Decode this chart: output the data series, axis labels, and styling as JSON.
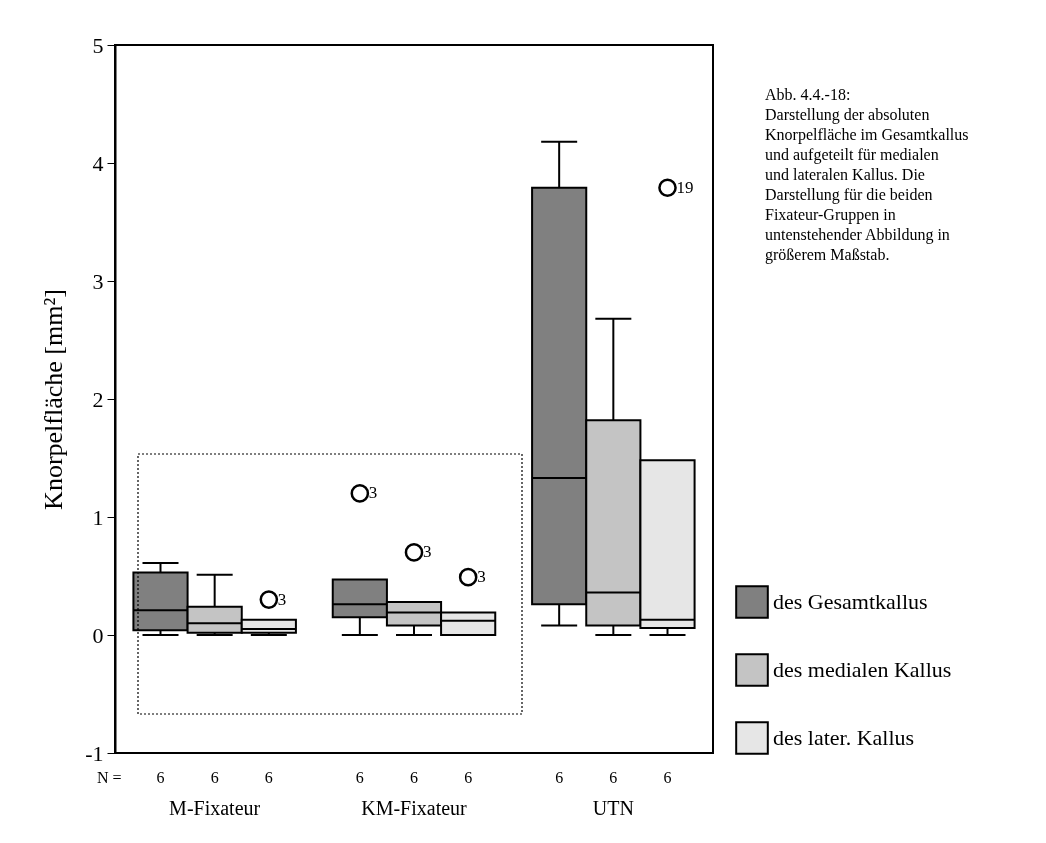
{
  "chart_data": {
    "type": "box",
    "ylabel": "Knorpelfläche [mm²]",
    "categories": [
      "M-Fixateur",
      "KM-Fixateur",
      "UTN"
    ],
    "series": [
      {
        "name": "des Gesamtkallus",
        "color": "#808080",
        "boxes": [
          {
            "low": 0,
            "q1": 0.04,
            "median": 0.21,
            "q3": 0.53,
            "high": 0.61
          },
          {
            "low": 0,
            "q1": 0.15,
            "median": 0.26,
            "q3": 0.47,
            "high": 0.47,
            "outliers": [
              1.2
            ]
          },
          {
            "low": 0.08,
            "q1": 0.26,
            "median": 1.33,
            "q3": 3.79,
            "high": 4.18
          }
        ]
      },
      {
        "name": "des medialen Kallus",
        "color": "#c4c4c4",
        "boxes": [
          {
            "low": 0,
            "q1": 0.02,
            "median": 0.1,
            "q3": 0.24,
            "high": 0.51
          },
          {
            "low": 0,
            "q1": 0.08,
            "median": 0.19,
            "q3": 0.28,
            "high": 0.28,
            "outliers": [
              0.7
            ]
          },
          {
            "low": 0,
            "q1": 0.08,
            "median": 0.36,
            "q3": 1.82,
            "high": 2.68
          }
        ]
      },
      {
        "name": "des later. Kallus",
        "color": "#e6e6e6",
        "boxes": [
          {
            "low": 0,
            "q1": 0.02,
            "median": 0.05,
            "q3": 0.13,
            "high": 0.13,
            "outliers": [
              0.3
            ]
          },
          {
            "low": 0,
            "q1": 0,
            "median": 0.12,
            "q3": 0.19,
            "high": 0.19,
            "outliers": [
              0.49
            ]
          },
          {
            "low": 0,
            "q1": 0.06,
            "median": 0.13,
            "q3": 1.48,
            "high": 1.48,
            "outliers": [
              3.79
            ]
          }
        ]
      }
    ],
    "ylim": [
      -1,
      5
    ],
    "yticks": [
      -1,
      0,
      1,
      2,
      3,
      4,
      5
    ],
    "grid": false,
    "legend": "right",
    "annotations": [
      "Abb. 4.4.-18:",
      "Darstellung der absoluten Knorpelfläche im Gesamtkallus und aufgeteilt für medialen und lateralen Kallus. Die Darstellung für die beiden Fixateur-Gruppen in untenstehender Abbildung in größerem Maßstab.",
      "N =",
      "6",
      "6",
      "6",
      "6",
      "6",
      "6",
      "6",
      "6",
      "6",
      "3",
      "3",
      "3",
      "3",
      "19"
    ]
  }
}
